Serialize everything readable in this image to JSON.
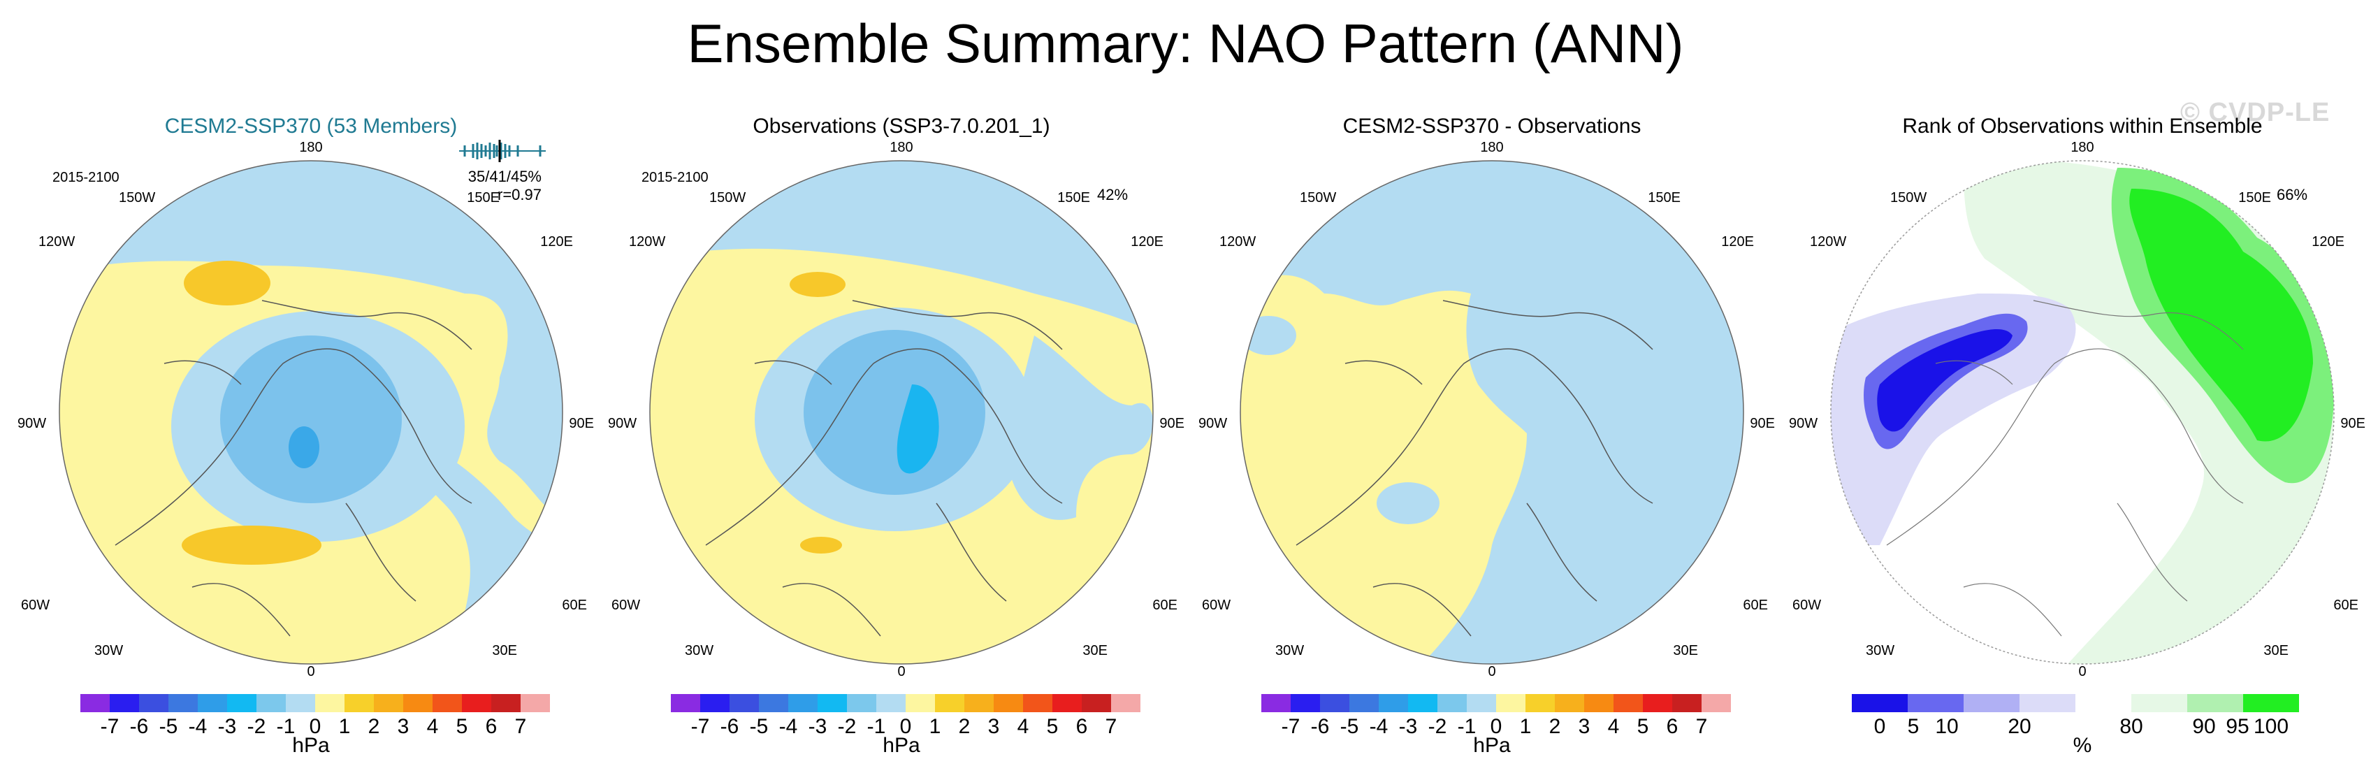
{
  "figure": {
    "title": "Ensemble Summary: NAO Pattern (ANN)",
    "watermark": "© CVDP-LE",
    "colors": {
      "light_yellow": "#fdf6a0",
      "light_blue": "#b3dcf2",
      "medium_blue": "#7cc2ec",
      "blue": "#3aa8e8",
      "orange_yellow": "#f7c82a",
      "rank_dark_blue": "#1a12e8",
      "rank_light_blue": "#dcdcf8",
      "rank_green": "#22ee22",
      "rank_light_green": "#e6f8e6"
    }
  },
  "longitude_labels": {
    "top": "180",
    "bottom": "0",
    "w150": "150W",
    "e150": "150E",
    "w120": "120W",
    "e120": "120E",
    "w90": "90W",
    "e90": "90E",
    "w60": "60W",
    "e60": "60E",
    "w30": "30W",
    "e30": "30E"
  },
  "panels": [
    {
      "title": "CESM2-SSP370 (53 Members)",
      "period": "2015-2100",
      "stats_line1": "35/41/45%",
      "stats_line2": "r=0.97",
      "colorbar_unit": "hPa"
    },
    {
      "title": "Observations (SSP3-7.0.201_1)",
      "period": "2015-2100",
      "percent": "42%",
      "colorbar_unit": "hPa"
    },
    {
      "title": "CESM2-SSP370 - Observations",
      "colorbar_unit": "hPa"
    },
    {
      "title": "Rank of Observations within Ensemble",
      "percent": "66%",
      "colorbar_unit": "%"
    }
  ],
  "colorbar_hpa": {
    "ticks": [
      "-7",
      "-6",
      "-5",
      "-4",
      "-3",
      "-2",
      "-1",
      "0",
      "1",
      "2",
      "3",
      "4",
      "5",
      "6",
      "7"
    ],
    "colors": [
      "#8a2be2",
      "#2a1ef0",
      "#3b4fe0",
      "#3c78e0",
      "#2f9de8",
      "#12b9f2",
      "#7cc8ec",
      "#b3dcf2",
      "#fdf6a0",
      "#f7d02a",
      "#f7b01c",
      "#f78a12",
      "#f2551a",
      "#e81e1e",
      "#c82020",
      "#f4a8a8"
    ]
  },
  "colorbar_rank": {
    "ticks": [
      "0",
      "5",
      "10",
      "20",
      "80",
      "90",
      "95",
      "100"
    ],
    "colors": [
      "#1a12e8",
      "#6868f0",
      "#b0b0f4",
      "#dcdcf8",
      "#ffffff",
      "#e6f8e6",
      "#b0f0b0",
      "#22ee22"
    ]
  }
}
